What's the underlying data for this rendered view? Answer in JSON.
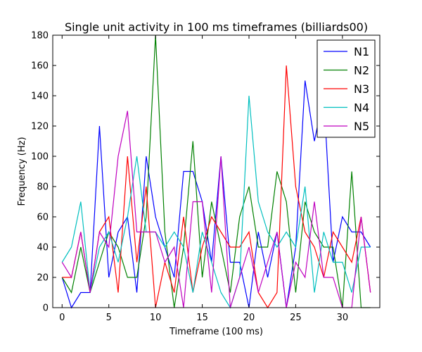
{
  "chart_data": {
    "type": "line",
    "title": "Single unit activity in 100 ms timeframes (billiards00)",
    "xlabel": "Timeframe (100 ms)",
    "ylabel": "Frequency (Hz)",
    "xlim": [
      -1,
      34
    ],
    "ylim": [
      0,
      180
    ],
    "xticks": [
      0,
      5,
      10,
      15,
      20,
      25,
      30
    ],
    "yticks": [
      0,
      20,
      40,
      60,
      80,
      100,
      120,
      140,
      160,
      180
    ],
    "legend_position": "top-right",
    "grid": false,
    "x": [
      0,
      1,
      2,
      3,
      4,
      5,
      6,
      7,
      8,
      9,
      10,
      11,
      12,
      13,
      14,
      15,
      16,
      17,
      18,
      19,
      20,
      21,
      22,
      23,
      24,
      25,
      26,
      27,
      28,
      29,
      30,
      31,
      32,
      33
    ],
    "series": [
      {
        "name": "N1",
        "color": "#0000ff",
        "values": [
          20,
          0,
          10,
          10,
          120,
          20,
          50,
          60,
          10,
          100,
          60,
          40,
          20,
          90,
          90,
          70,
          30,
          100,
          30,
          30,
          0,
          50,
          20,
          50,
          0,
          40,
          150,
          110,
          140,
          30,
          60,
          50,
          50,
          40
        ]
      },
      {
        "name": "N2",
        "color": "#008000",
        "values": [
          20,
          10,
          40,
          10,
          30,
          50,
          40,
          20,
          20,
          60,
          180,
          50,
          0,
          40,
          110,
          20,
          70,
          40,
          10,
          60,
          80,
          40,
          40,
          90,
          70,
          10,
          70,
          50,
          40,
          40,
          0,
          90,
          0,
          0
        ]
      },
      {
        "name": "N3",
        "color": "#ff0000",
        "values": [
          20,
          20,
          50,
          10,
          50,
          60,
          10,
          100,
          30,
          80,
          0,
          30,
          10,
          60,
          10,
          40,
          60,
          50,
          40,
          40,
          50,
          10,
          0,
          10,
          160,
          80,
          50,
          40,
          20,
          50,
          40,
          30,
          60,
          10
        ]
      },
      {
        "name": "N4",
        "color": "#00bfbf",
        "values": [
          30,
          40,
          70,
          10,
          40,
          50,
          30,
          60,
          100,
          50,
          50,
          40,
          50,
          40,
          10,
          50,
          30,
          10,
          0,
          20,
          140,
          70,
          50,
          40,
          50,
          40,
          80,
          10,
          50,
          30,
          30,
          10,
          40,
          40
        ]
      },
      {
        "name": "N5",
        "color": "#bf00bf",
        "values": [
          30,
          20,
          50,
          10,
          50,
          40,
          100,
          130,
          50,
          50,
          50,
          30,
          40,
          0,
          70,
          70,
          10,
          100,
          0,
          20,
          40,
          10,
          30,
          50,
          0,
          30,
          20,
          70,
          20,
          20,
          0,
          0,
          60,
          10
        ]
      }
    ]
  }
}
